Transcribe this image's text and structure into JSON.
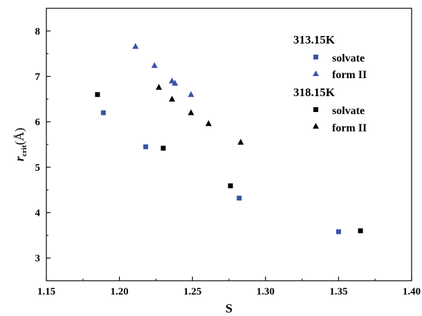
{
  "chart_data": {
    "type": "scatter",
    "xlabel": "S",
    "ylabel": {
      "main": "r",
      "sub": "crit",
      "unit": "(Å)"
    },
    "xlim": [
      1.15,
      1.4
    ],
    "ylim": [
      2.5,
      8.5
    ],
    "xticks": [
      "1.15",
      "1.20",
      "1.25",
      "1.30",
      "1.35",
      "1.40"
    ],
    "xtick_values": [
      1.15,
      1.2,
      1.25,
      1.3,
      1.35,
      1.4
    ],
    "yticks": [
      "3",
      "4",
      "5",
      "6",
      "7",
      "8"
    ],
    "ytick_values": [
      3,
      4,
      5,
      6,
      7,
      8
    ],
    "grid": false,
    "legend_position": "top-right",
    "legend_groups": [
      "313.15K",
      "318.15K"
    ],
    "series": [
      {
        "name": "solvate",
        "group": "313.15K",
        "marker": "square",
        "color": "#3a55a4",
        "x": [
          1.189,
          1.218,
          1.282,
          1.35
        ],
        "y": [
          6.2,
          5.45,
          4.32,
          3.58
        ]
      },
      {
        "name": "form II",
        "group": "313.15K",
        "marker": "triangle",
        "color": "#3a55a4",
        "x": [
          1.211,
          1.224,
          1.236,
          1.238,
          1.249
        ],
        "y": [
          7.66,
          7.24,
          6.9,
          6.85,
          6.6
        ]
      },
      {
        "name": "solvate",
        "group": "318.15K",
        "marker": "square",
        "color": "#000000",
        "x": [
          1.185,
          1.23,
          1.276,
          1.365
        ],
        "y": [
          6.6,
          5.42,
          4.59,
          3.6
        ]
      },
      {
        "name": "form II",
        "group": "318.15K",
        "marker": "triangle",
        "color": "#000000",
        "x": [
          1.227,
          1.236,
          1.249,
          1.261,
          1.283
        ],
        "y": [
          6.76,
          6.5,
          6.2,
          5.96,
          5.55
        ]
      }
    ]
  }
}
